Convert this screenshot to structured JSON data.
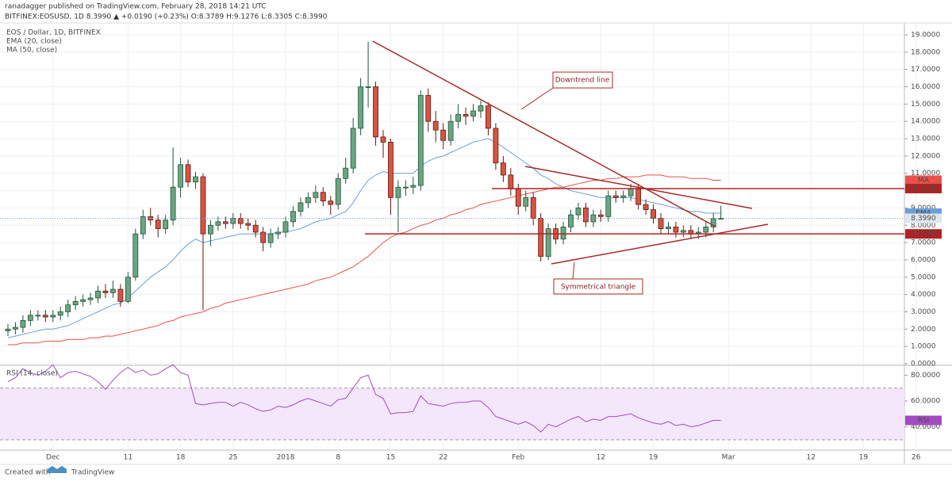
{
  "header": {
    "publisher": "ranadagger published on TradingView.com, February 28, 2018 14:21 UTC",
    "symbol_line": "BITFINEX:EOSUSD, 1D 8.3990 ▲ +0.0190 (+0.23%) O:8.3789 H:9.1276 L:8.3305 C:8.3990"
  },
  "footer": {
    "created_with": "Created with",
    "brand": "TradingView"
  },
  "chart_data": [
    {
      "type": "candlestick",
      "title": "EOS / Dollar, 1D, BITFINEX",
      "categories": [
        null,
        null,
        null,
        null,
        null,
        null,
        "Dec",
        null,
        null,
        null,
        null,
        null,
        null,
        null,
        null,
        null,
        "11",
        null,
        null,
        null,
        null,
        null,
        null,
        "18",
        null,
        null,
        null,
        null,
        null,
        null,
        "25",
        null,
        null,
        null,
        null,
        null,
        null,
        "2018",
        null,
        null,
        null,
        null,
        null,
        null,
        "8",
        null,
        null,
        null,
        null,
        null,
        null,
        "15",
        null,
        null,
        null,
        null,
        null,
        null,
        "22",
        null,
        null,
        null,
        null,
        null,
        null,
        null,
        null,
        null,
        "Feb",
        null,
        null,
        null,
        null,
        null,
        null,
        null,
        null,
        null,
        null,
        "12",
        null,
        null,
        null,
        null,
        null,
        null,
        "19",
        null,
        null,
        null,
        null,
        null,
        null,
        null,
        null,
        null,
        "Mar",
        null,
        null,
        null,
        null,
        null,
        null,
        null,
        null,
        null,
        null,
        "12",
        null,
        null,
        null,
        null,
        null,
        null,
        "19",
        null,
        null,
        null,
        null,
        null,
        null,
        "26"
      ],
      "open": [
        1.9,
        2.0,
        2.1,
        2.5,
        2.8,
        2.8,
        2.7,
        2.8,
        3.0,
        3.4,
        3.6,
        3.7,
        3.8,
        4.2,
        4.1,
        4.3,
        3.6,
        5.0,
        7.5,
        8.5,
        8.3,
        7.8,
        8.3,
        10.2,
        11.5,
        10.5,
        10.8,
        7.5,
        8.0,
        8.2,
        8.1,
        8.4,
        8.1,
        8.0,
        7.6,
        7.0,
        7.5,
        7.6,
        8.2,
        8.8,
        9.3,
        9.6,
        9.9,
        9.4,
        9.2,
        10.7,
        11.3,
        13.6,
        16.0,
        16.0,
        13.1,
        12.8,
        9.6,
        10.2,
        10.2,
        10.3,
        15.5,
        14.0,
        13.5,
        12.9,
        14.0,
        14.4,
        14.3,
        14.6,
        14.9,
        13.6,
        11.6,
        10.9,
        10.1,
        9.1,
        9.6,
        8.4,
        6.2,
        7.8,
        7.2,
        7.9,
        8.6,
        9.0,
        8.2,
        8.6,
        8.5,
        9.7,
        9.6,
        9.7,
        10.1,
        9.2,
        8.9,
        8.4,
        7.8,
        7.9,
        7.6,
        7.7,
        7.5,
        7.6,
        7.9,
        8.3789,
        null,
        null,
        null,
        null,
        null,
        null,
        null,
        null,
        null,
        null,
        null,
        null,
        null,
        null,
        null,
        null,
        null,
        null,
        null,
        null,
        null,
        null,
        null,
        null,
        null,
        null
      ],
      "high": [
        2.3,
        2.4,
        2.8,
        3.1,
        3.1,
        3.1,
        3.1,
        3.3,
        3.7,
        3.9,
        4.0,
        4.1,
        4.5,
        4.6,
        4.8,
        4.6,
        5.3,
        7.8,
        8.9,
        9.0,
        8.6,
        8.6,
        12.5,
        11.9,
        11.8,
        11.1,
        11.0,
        8.3,
        8.5,
        8.5,
        8.7,
        8.7,
        8.4,
        8.3,
        7.9,
        7.8,
        7.9,
        8.5,
        9.1,
        9.6,
        9.9,
        10.3,
        10.2,
        9.7,
        11.0,
        11.9,
        14.2,
        16.5,
        18.6,
        16.3,
        13.5,
        13.0,
        10.6,
        10.6,
        10.8,
        15.8,
        15.9,
        14.6,
        13.9,
        14.4,
        15.0,
        14.8,
        15.0,
        15.2,
        15.1,
        13.9,
        12.0,
        11.3,
        10.4,
        10.0,
        9.9,
        8.7,
        8.1,
        8.1,
        8.2,
        8.9,
        9.3,
        9.3,
        8.9,
        8.9,
        10.0,
        10.0,
        10.0,
        10.4,
        10.4,
        9.5,
        9.2,
        8.7,
        8.2,
        8.2,
        8.0,
        8.0,
        7.9,
        8.2,
        8.7,
        9.1276,
        null,
        null,
        null,
        null,
        null,
        null,
        null,
        null,
        null,
        null,
        null,
        null,
        null,
        null,
        null,
        null,
        null,
        null,
        null,
        null,
        null,
        null,
        null,
        null,
        null,
        null
      ],
      "low": [
        1.6,
        1.7,
        1.8,
        2.2,
        2.5,
        2.4,
        2.4,
        2.5,
        2.7,
        3.1,
        3.3,
        3.4,
        3.5,
        3.8,
        3.8,
        3.3,
        3.5,
        4.8,
        7.2,
        8.0,
        7.3,
        7.5,
        8.0,
        9.6,
        10.2,
        10.1,
        3.1,
        6.8,
        7.7,
        7.8,
        7.8,
        7.8,
        7.7,
        7.3,
        6.5,
        6.7,
        7.2,
        7.3,
        7.9,
        8.5,
        9.0,
        9.3,
        9.1,
        8.6,
        8.9,
        10.4,
        11.0,
        13.2,
        14.8,
        12.6,
        11.9,
        8.6,
        7.6,
        9.7,
        9.8,
        10.0,
        13.4,
        12.8,
        12.4,
        12.6,
        13.6,
        13.8,
        14.0,
        14.2,
        13.2,
        11.2,
        10.5,
        9.7,
        8.6,
        8.8,
        8.0,
        5.9,
        6.0,
        6.9,
        6.9,
        7.6,
        8.3,
        7.9,
        7.9,
        8.2,
        8.2,
        9.3,
        9.3,
        9.4,
        8.9,
        8.6,
        8.1,
        7.5,
        7.5,
        7.3,
        7.3,
        7.2,
        7.2,
        7.3,
        7.6,
        8.3305,
        null,
        null,
        null,
        null,
        null,
        null,
        null,
        null,
        null,
        null,
        null,
        null,
        null,
        null,
        null,
        null,
        null,
        null,
        null,
        null,
        null,
        null,
        null,
        null,
        null,
        null
      ],
      "close": [
        2.0,
        2.1,
        2.5,
        2.8,
        2.8,
        2.7,
        2.8,
        3.0,
        3.4,
        3.6,
        3.7,
        3.8,
        4.2,
        4.1,
        4.3,
        3.6,
        5.0,
        7.5,
        8.5,
        8.3,
        7.8,
        8.3,
        10.2,
        11.5,
        10.5,
        10.8,
        7.5,
        8.0,
        8.2,
        8.1,
        8.4,
        8.1,
        8.0,
        7.6,
        7.0,
        7.5,
        7.6,
        8.2,
        8.8,
        9.3,
        9.6,
        9.9,
        9.4,
        9.2,
        10.7,
        11.3,
        13.6,
        16.0,
        16.0,
        13.1,
        12.8,
        9.6,
        10.2,
        10.2,
        10.3,
        15.5,
        14.0,
        13.5,
        12.9,
        14.0,
        14.4,
        14.3,
        14.6,
        14.9,
        13.6,
        11.6,
        10.9,
        10.1,
        9.1,
        9.6,
        8.4,
        6.2,
        7.8,
        7.2,
        7.9,
        8.6,
        9.0,
        8.2,
        8.6,
        8.5,
        9.7,
        9.6,
        9.7,
        10.1,
        9.2,
        8.9,
        8.4,
        7.8,
        7.9,
        7.6,
        7.7,
        7.5,
        7.6,
        7.9,
        8.38,
        8.399,
        null,
        null,
        null,
        null,
        null,
        null,
        null,
        null,
        null,
        null,
        null,
        null,
        null,
        null,
        null,
        null,
        null,
        null,
        null,
        null,
        null,
        null,
        null,
        null,
        null,
        null
      ],
      "up_color": "#6ba583",
      "down_color": "#d75442",
      "last_price_label": "8.3990",
      "series": [
        {
          "name": "EMA (20, close)",
          "tag": "EMA",
          "color": "#6a9fd6",
          "values": [
            1.5,
            1.6,
            1.7,
            1.8,
            1.9,
            2.0,
            2.0,
            2.1,
            2.2,
            2.4,
            2.6,
            2.8,
            3.0,
            3.2,
            3.4,
            3.5,
            3.8,
            4.2,
            4.6,
            5.0,
            5.3,
            5.6,
            6.0,
            6.5,
            6.9,
            7.2,
            7.0,
            7.1,
            7.2,
            7.3,
            7.4,
            7.5,
            7.5,
            7.5,
            7.5,
            7.5,
            7.6,
            7.6,
            7.7,
            7.8,
            8.0,
            8.2,
            8.3,
            8.4,
            8.6,
            8.8,
            9.3,
            10.0,
            10.6,
            10.9,
            11.1,
            11.0,
            11.0,
            11.0,
            11.0,
            11.4,
            11.7,
            11.9,
            12.0,
            12.2,
            12.4,
            12.6,
            12.8,
            12.9,
            13.0,
            12.8,
            12.5,
            12.2,
            11.9,
            11.6,
            11.3,
            10.9,
            10.7,
            10.4,
            10.2,
            10.0,
            9.9,
            9.8,
            9.7,
            9.6,
            9.6,
            9.6,
            9.6,
            9.6,
            9.5,
            9.4,
            9.3,
            9.2,
            9.1,
            9.0,
            8.9,
            8.8,
            8.8,
            8.7,
            8.7,
            8.7,
            null,
            null,
            null,
            null,
            null,
            null,
            null,
            null,
            null,
            null,
            null,
            null,
            null,
            null,
            null,
            null,
            null,
            null,
            null,
            null,
            null,
            null,
            null,
            null,
            null,
            null
          ]
        },
        {
          "name": "MA (50, close)",
          "tag": "MA",
          "color": "#e8524a",
          "values": [
            1.1,
            1.1,
            1.2,
            1.2,
            1.2,
            1.3,
            1.3,
            1.3,
            1.4,
            1.4,
            1.4,
            1.5,
            1.5,
            1.6,
            1.6,
            1.7,
            1.8,
            1.9,
            2.0,
            2.1,
            2.2,
            2.4,
            2.5,
            2.7,
            2.8,
            2.9,
            3.0,
            3.2,
            3.3,
            3.5,
            3.6,
            3.7,
            3.8,
            3.9,
            4.0,
            4.1,
            4.2,
            4.3,
            4.4,
            4.5,
            4.6,
            4.8,
            4.9,
            5.0,
            5.2,
            5.4,
            5.6,
            5.9,
            6.2,
            6.6,
            7.0,
            7.3,
            7.5,
            7.6,
            7.8,
            8.0,
            8.1,
            8.3,
            8.4,
            8.6,
            8.7,
            8.9,
            9.0,
            9.2,
            9.3,
            9.4,
            9.5,
            9.6,
            9.7,
            9.8,
            9.9,
            10.0,
            10.1,
            10.2,
            10.2,
            10.3,
            10.4,
            10.5,
            10.6,
            10.6,
            10.7,
            10.7,
            10.8,
            10.8,
            10.8,
            10.9,
            10.9,
            10.9,
            10.8,
            10.8,
            10.8,
            10.7,
            10.7,
            10.7,
            10.6,
            10.6,
            null,
            null,
            null,
            null,
            null,
            null,
            null,
            null,
            null,
            null,
            null,
            null,
            null,
            null,
            null,
            null,
            null,
            null,
            null,
            null,
            null,
            null,
            null,
            null,
            null,
            null
          ]
        }
      ],
      "horizontal_lines": [
        {
          "value": 10.119,
          "label": "10.1190"
        },
        {
          "value": 7.5,
          "label": "7.5000"
        }
      ],
      "line_color": "#b22222",
      "annotations": [
        "Downtrend line",
        "Symmetrical triangle"
      ],
      "ylim": [
        0,
        19.64
      ],
      "yticks": [
        {
          "value": 0,
          "label": "0.0000"
        },
        {
          "value": 1,
          "label": "1.0000"
        },
        {
          "value": 2,
          "label": "2.0000"
        },
        {
          "value": 3,
          "label": "3.0000"
        },
        {
          "value": 4,
          "label": "4.0000"
        },
        {
          "value": 5,
          "label": "5.0000"
        },
        {
          "value": 6,
          "label": "6.0000"
        },
        {
          "value": 7,
          "label": "7.0000"
        },
        {
          "value": 8,
          "label": "8.0000"
        },
        {
          "value": 9,
          "label": "9.0000"
        },
        {
          "value": 10,
          "label": "10.0000"
        },
        {
          "value": 11,
          "label": "11.0000"
        },
        {
          "value": 12,
          "label": "12.0000"
        },
        {
          "value": 13,
          "label": "13.0000"
        },
        {
          "value": 14,
          "label": "14.0000"
        },
        {
          "value": 15,
          "label": "15.0000"
        },
        {
          "value": 16,
          "label": "16.0000"
        },
        {
          "value": 17,
          "label": "17.0000"
        },
        {
          "value": 18,
          "label": "18.0000"
        },
        {
          "value": 19,
          "label": "19.0000"
        }
      ],
      "grid": true
    },
    {
      "type": "line",
      "title": "RSI (14, close)",
      "tag": "RSI",
      "color": "#a24cc2",
      "band_fill": "#f4e6fb",
      "values": [
        75,
        78,
        85,
        82,
        80,
        83,
        88,
        78,
        82,
        83,
        81,
        79,
        75,
        69,
        76,
        82,
        86,
        82,
        84,
        80,
        81,
        85,
        88,
        82,
        80,
        58,
        57,
        58,
        59,
        59,
        56,
        59,
        57,
        54,
        52,
        53,
        56,
        55,
        57,
        60,
        62,
        60,
        58,
        56,
        61,
        62,
        70,
        78,
        80,
        65,
        62,
        50,
        51,
        51,
        52,
        64,
        58,
        57,
        56,
        58,
        59,
        59,
        60,
        60,
        55,
        48,
        46,
        44,
        42,
        44,
        41,
        36,
        42,
        40,
        43,
        46,
        48,
        44,
        46,
        45,
        48,
        48,
        49,
        50,
        47,
        45,
        43,
        42,
        44,
        41,
        42,
        40,
        41,
        43,
        45,
        45,
        null,
        null,
        null,
        null,
        null,
        null,
        null,
        null,
        null,
        null,
        null,
        null,
        null,
        null,
        null,
        null,
        null,
        null,
        null,
        null,
        null,
        null,
        null,
        null,
        null,
        null
      ],
      "bands": [
        30,
        70
      ],
      "ylim": [
        22,
        87
      ],
      "yticks": [
        {
          "value": 40,
          "label": "40.0000"
        },
        {
          "value": 60,
          "label": "60.0000"
        },
        {
          "value": 80,
          "label": "80.0000"
        }
      ]
    }
  ]
}
